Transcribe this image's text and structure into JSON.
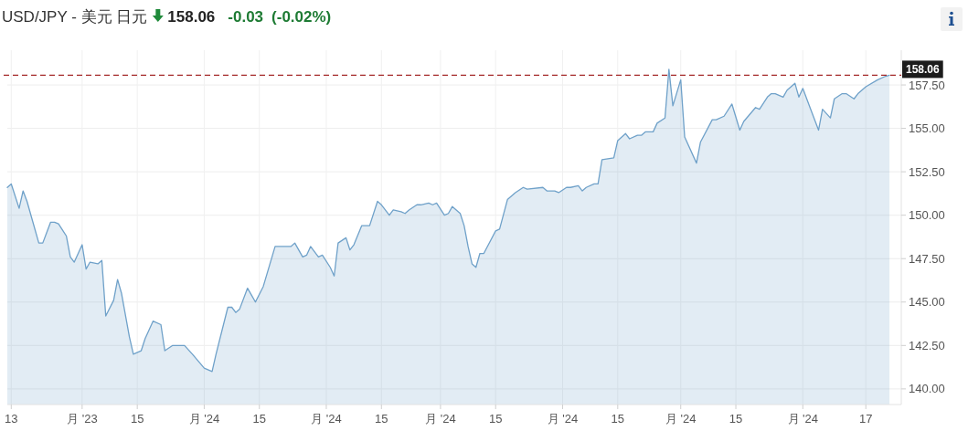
{
  "chart_data": {
    "type": "area",
    "title": "USD/JPY - 美元 日元",
    "annotations": [
      "158.06",
      "-0.03",
      "(-0.02%)"
    ],
    "x": [
      "2023-11-12",
      "2023-11-13",
      "2023-11-15",
      "2023-11-16",
      "2023-11-17",
      "2023-11-20",
      "2023-11-21",
      "2023-11-23",
      "2023-11-24",
      "2023-11-25",
      "2023-11-27",
      "2023-11-28",
      "2023-11-29",
      "2023-12-01",
      "2023-12-02",
      "2023-12-03",
      "2023-12-05",
      "2023-12-06",
      "2023-12-07",
      "2023-12-09",
      "2023-12-10",
      "2023-12-11",
      "2023-12-13",
      "2023-12-14",
      "2023-12-16",
      "2023-12-17",
      "2023-12-19",
      "2023-12-21",
      "2023-12-22",
      "2023-12-24",
      "2023-12-26",
      "2023-12-27",
      "2023-12-29",
      "2024-01-01",
      "2024-01-03",
      "2024-01-04",
      "2024-01-07",
      "2024-01-08",
      "2024-01-09",
      "2024-01-10",
      "2024-01-12",
      "2024-01-13",
      "2024-01-14",
      "2024-01-16",
      "2024-01-19",
      "2024-01-21",
      "2024-01-23",
      "2024-01-24",
      "2024-01-26",
      "2024-01-27",
      "2024-01-28",
      "2024-01-30",
      "2024-01-31",
      "2024-02-02",
      "2024-02-03",
      "2024-02-04",
      "2024-02-06",
      "2024-02-07",
      "2024-02-08",
      "2024-02-10",
      "2024-02-11",
      "2024-02-12",
      "2024-02-14",
      "2024-02-15",
      "2024-02-17",
      "2024-02-18",
      "2024-02-20",
      "2024-02-21",
      "2024-02-22",
      "2024-02-24",
      "2024-02-25",
      "2024-02-27",
      "2024-02-28",
      "2024-02-29",
      "2024-03-02",
      "2024-03-03",
      "2024-03-04",
      "2024-03-06",
      "2024-03-07",
      "2024-03-08",
      "2024-03-09",
      "2024-03-10",
      "2024-03-11",
      "2024-03-12",
      "2024-03-15",
      "2024-03-16",
      "2024-03-18",
      "2024-03-20",
      "2024-03-22",
      "2024-03-23",
      "2024-03-27",
      "2024-03-28",
      "2024-03-30",
      "2024-03-31",
      "2024-04-02",
      "2024-04-03",
      "2024-04-05",
      "2024-04-06",
      "2024-04-07",
      "2024-04-09",
      "2024-04-10",
      "2024-04-11",
      "2024-04-14",
      "2024-04-15",
      "2024-04-17",
      "2024-04-18",
      "2024-04-20",
      "2024-04-21",
      "2024-04-22",
      "2024-04-24",
      "2024-04-25",
      "2024-04-27",
      "2024-04-28",
      "2024-04-29",
      "2024-05-01",
      "2024-05-02",
      "2024-05-05",
      "2024-05-06",
      "2024-05-09",
      "2024-05-10",
      "2024-05-12",
      "2024-05-14",
      "2024-05-16",
      "2024-05-17",
      "2024-05-20",
      "2024-05-21",
      "2024-05-23",
      "2024-05-24",
      "2024-05-25",
      "2024-05-27",
      "2024-05-28",
      "2024-05-30",
      "2024-05-31",
      "2024-06-01",
      "2024-06-03",
      "2024-06-05",
      "2024-06-06",
      "2024-06-08",
      "2024-06-09",
      "2024-06-11",
      "2024-06-12",
      "2024-06-14",
      "2024-06-15",
      "2024-06-17",
      "2024-06-20",
      "2024-06-22",
      "2024-06-23"
    ],
    "series": [
      {
        "color": "#6fa1c9",
        "values": [
          151.6,
          151.8,
          150.4,
          151.4,
          150.8,
          148.4,
          148.4,
          149.6,
          149.6,
          149.5,
          148.8,
          147.6,
          147.3,
          148.3,
          146.9,
          147.3,
          147.2,
          147.4,
          144.2,
          145.1,
          146.3,
          145.5,
          143.0,
          142.0,
          142.2,
          142.9,
          143.9,
          143.7,
          142.2,
          142.5,
          142.5,
          142.5,
          142.0,
          141.2,
          141.0,
          142.0,
          144.7,
          144.7,
          144.4,
          144.6,
          145.8,
          145.4,
          145.0,
          145.9,
          148.2,
          148.2,
          148.2,
          148.4,
          147.6,
          147.7,
          148.2,
          147.6,
          147.7,
          147.0,
          146.5,
          148.4,
          148.7,
          148.0,
          148.3,
          149.4,
          149.4,
          149.4,
          150.8,
          150.6,
          150.0,
          150.3,
          150.2,
          150.1,
          150.3,
          150.6,
          150.6,
          150.7,
          150.6,
          150.7,
          150.0,
          150.1,
          150.5,
          150.1,
          149.4,
          148.2,
          147.2,
          147.0,
          147.8,
          147.8,
          149.1,
          149.2,
          150.9,
          151.3,
          151.6,
          151.5,
          151.6,
          151.4,
          151.4,
          151.3,
          151.6,
          151.6,
          151.7,
          151.4,
          151.6,
          151.8,
          151.8,
          153.2,
          153.3,
          154.3,
          154.7,
          154.4,
          154.6,
          154.6,
          154.8,
          154.8,
          155.3,
          155.6,
          158.4,
          156.3,
          157.8,
          154.5,
          153.0,
          154.2,
          155.5,
          155.5,
          155.7,
          156.4,
          154.9,
          155.4,
          156.2,
          156.1,
          156.8,
          157.0,
          157.0,
          156.8,
          157.2,
          157.6,
          156.8,
          157.3,
          156.1,
          154.9,
          156.1,
          155.6,
          156.7,
          157.0,
          157.0,
          156.7,
          157.0,
          157.4,
          157.8,
          158.0,
          158.06
        ]
      }
    ],
    "xlim": [
      "2023-11-12",
      "2024-06-26"
    ],
    "xticks": [
      {
        "value": "2023-11-13",
        "label": "13"
      },
      {
        "value": "2023-12-01",
        "label": "月 '23"
      },
      {
        "value": "2023-12-15",
        "label": "15"
      },
      {
        "value": "2024-01-01",
        "label": "月 '24"
      },
      {
        "value": "2024-01-15",
        "label": "15"
      },
      {
        "value": "2024-02-01",
        "label": "月 '24"
      },
      {
        "value": "2024-02-15",
        "label": "15"
      },
      {
        "value": "2024-03-01",
        "label": "月 '24"
      },
      {
        "value": "2024-03-15",
        "label": "15"
      },
      {
        "value": "2024-04-01",
        "label": "月 '24"
      },
      {
        "value": "2024-04-15",
        "label": "15"
      },
      {
        "value": "2024-05-01",
        "label": "月 '24"
      },
      {
        "value": "2024-05-15",
        "label": "15"
      },
      {
        "value": "2024-06-01",
        "label": "月 '24"
      },
      {
        "value": "2024-06-17",
        "label": "17"
      }
    ],
    "ylim": [
      139.1,
      159.5
    ],
    "yticks": [
      {
        "value": 140,
        "label": "140.00"
      },
      {
        "value": 142.5,
        "label": "142.50"
      },
      {
        "value": 145,
        "label": "145.00"
      },
      {
        "value": 147.5,
        "label": "147.50"
      },
      {
        "value": 150,
        "label": "150.00"
      },
      {
        "value": 152.5,
        "label": "152.50"
      },
      {
        "value": 155,
        "label": "155.00"
      },
      {
        "value": 157.5,
        "label": "157.50"
      }
    ],
    "grid": true,
    "ref_lines": [
      {
        "axis": "y",
        "value": 158.06,
        "label": "158.06",
        "color": "#a52a2a",
        "line_style": "dashed"
      }
    ]
  }
}
